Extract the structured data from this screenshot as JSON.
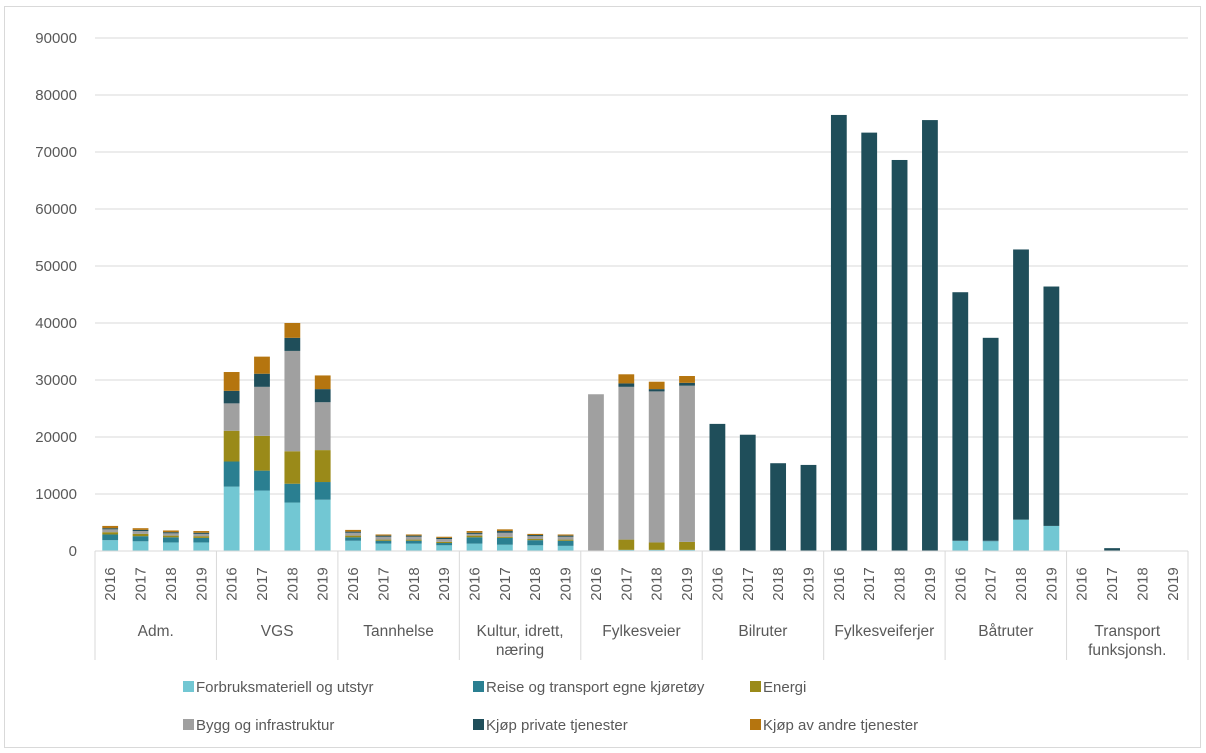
{
  "chart_data": {
    "type": "bar",
    "stacked": true,
    "ylim": [
      0,
      90000
    ],
    "yticks": [
      "0",
      "10000",
      "20000",
      "30000",
      "40000",
      "50000",
      "60000",
      "70000",
      "80000",
      "90000"
    ],
    "grid": true,
    "legend_position": "bottom",
    "groups": [
      {
        "label": [
          "Adm."
        ],
        "years": [
          "2016",
          "2017",
          "2018",
          "2019"
        ]
      },
      {
        "label": [
          "VGS"
        ],
        "years": [
          "2016",
          "2017",
          "2018",
          "2019"
        ]
      },
      {
        "label": [
          "Tannhelse"
        ],
        "years": [
          "2016",
          "2017",
          "2018",
          "2019"
        ]
      },
      {
        "label": [
          "Kultur, idrett,",
          "næring"
        ],
        "years": [
          "2016",
          "2017",
          "2018",
          "2019"
        ]
      },
      {
        "label": [
          "Fylkesveier"
        ],
        "years": [
          "2016",
          "2017",
          "2018",
          "2019"
        ]
      },
      {
        "label": [
          "Bilruter"
        ],
        "years": [
          "2016",
          "2017",
          "2018",
          "2019"
        ]
      },
      {
        "label": [
          "Fylkesveiferjer"
        ],
        "years": [
          "2016",
          "2017",
          "2018",
          "2019"
        ]
      },
      {
        "label": [
          "Båtruter"
        ],
        "years": [
          "2016",
          "2017",
          "2018",
          "2019"
        ]
      },
      {
        "label": [
          "Transport",
          "funksjonsh."
        ],
        "years": [
          "2016",
          "2017",
          "2018",
          "2019"
        ]
      }
    ],
    "series": [
      {
        "name": "Forbruksmateriell og utstyr",
        "color": "#72c7d3",
        "values": [
          1900,
          1700,
          1500,
          1500,
          11300,
          10600,
          8500,
          9000,
          1800,
          1300,
          1300,
          1000,
          1300,
          1100,
          1000,
          900,
          0,
          200,
          200,
          200,
          0,
          0,
          0,
          0,
          0,
          0,
          0,
          0,
          1800,
          1700,
          5500,
          4400,
          0,
          0,
          0,
          0
        ]
      },
      {
        "name": "Reise og transport egne kjøretøy",
        "color": "#2a7f91",
        "values": [
          1000,
          900,
          900,
          800,
          4400,
          3500,
          3300,
          3100,
          600,
          500,
          500,
          400,
          1100,
          1200,
          900,
          900,
          0,
          0,
          0,
          0,
          0,
          0,
          0,
          0,
          0,
          0,
          0,
          0,
          0,
          100,
          0,
          0,
          0,
          0,
          0,
          0
        ]
      },
      {
        "name": "Energi",
        "color": "#9a8a19",
        "values": [
          400,
          400,
          300,
          300,
          5400,
          6100,
          5700,
          5600,
          300,
          200,
          200,
          200,
          300,
          200,
          200,
          200,
          0,
          1800,
          1300,
          1400,
          0,
          0,
          0,
          0,
          0,
          0,
          0,
          0,
          0,
          0,
          0,
          0,
          0,
          0,
          0,
          0
        ]
      },
      {
        "name": "Bygg og infrastruktur",
        "color": "#a0a0a0",
        "values": [
          500,
          500,
          400,
          400,
          4800,
          8600,
          17600,
          8400,
          500,
          500,
          500,
          500,
          300,
          700,
          500,
          500,
          27500,
          26800,
          26500,
          27400,
          0,
          0,
          0,
          0,
          0,
          0,
          0,
          0,
          0,
          0,
          0,
          0,
          0,
          0,
          0,
          0
        ]
      },
      {
        "name": "Kjøp private tjenester",
        "color": "#1f4e5a",
        "values": [
          200,
          200,
          200,
          200,
          2200,
          2300,
          2300,
          2300,
          200,
          200,
          200,
          200,
          200,
          300,
          200,
          200,
          0,
          600,
          400,
          500,
          22300,
          20400,
          15400,
          15100,
          76500,
          73400,
          68600,
          75600,
          43600,
          35600,
          47400,
          42000,
          0,
          500,
          0,
          0
        ]
      },
      {
        "name": "Kjøp av andre tjenester",
        "color": "#b5750f",
        "values": [
          400,
          300,
          300,
          300,
          3300,
          3000,
          2600,
          2400,
          300,
          200,
          200,
          200,
          300,
          300,
          200,
          200,
          0,
          1600,
          1300,
          1200,
          0,
          0,
          0,
          0,
          0,
          0,
          0,
          0,
          0,
          0,
          0,
          0,
          0,
          0,
          0,
          0
        ]
      }
    ]
  }
}
